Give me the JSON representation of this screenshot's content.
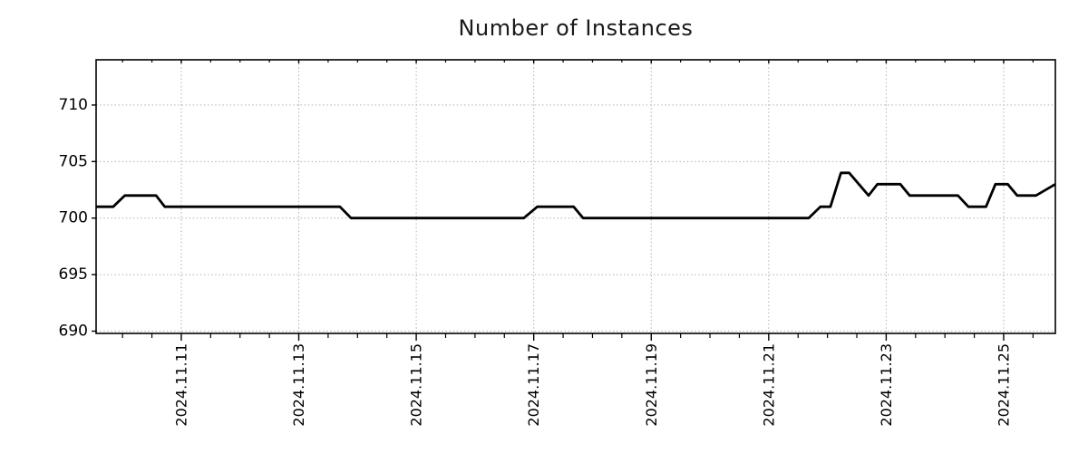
{
  "chart_data": {
    "type": "line",
    "title": "Number of Instances",
    "x_unit": "days since 2024-11-11 00:00",
    "xlim": [
      -1.45,
      14.88
    ],
    "ylim": [
      689.8,
      714.0
    ],
    "y_ticks": [
      690,
      695,
      700,
      705,
      710
    ],
    "x_major_ticks": [
      {
        "d": 0,
        "label": "2024.11.11"
      },
      {
        "d": 2,
        "label": "2024.11.13"
      },
      {
        "d": 4,
        "label": "2024.11.15"
      },
      {
        "d": 6,
        "label": "2024.11.17"
      },
      {
        "d": 8,
        "label": "2024.11.19"
      },
      {
        "d": 10,
        "label": "2024.11.21"
      },
      {
        "d": 12,
        "label": "2024.11.23"
      },
      {
        "d": 14,
        "label": "2024.11.25"
      }
    ],
    "x_minor_tick_step": 0.5,
    "grid": {
      "show": true,
      "style": "dotted",
      "color": "#b0b0b0"
    },
    "legend": {
      "show": false
    },
    "series": [
      {
        "name": "instances",
        "color": "#000000",
        "points": [
          [
            -1.45,
            701
          ],
          [
            -1.16,
            701
          ],
          [
            -0.96,
            702
          ],
          [
            -0.43,
            702
          ],
          [
            -0.28,
            701
          ],
          [
            2.7,
            701
          ],
          [
            2.89,
            700
          ],
          [
            5.83,
            700
          ],
          [
            6.06,
            701
          ],
          [
            6.68,
            701
          ],
          [
            6.84,
            700
          ],
          [
            10.68,
            700
          ],
          [
            10.88,
            701
          ],
          [
            11.05,
            701
          ],
          [
            11.23,
            704
          ],
          [
            11.37,
            704
          ],
          [
            11.7,
            702
          ],
          [
            11.85,
            703
          ],
          [
            12.24,
            703
          ],
          [
            12.4,
            702
          ],
          [
            13.22,
            702
          ],
          [
            13.4,
            701
          ],
          [
            13.7,
            701
          ],
          [
            13.86,
            703
          ],
          [
            14.07,
            703
          ],
          [
            14.23,
            702
          ],
          [
            14.55,
            702
          ],
          [
            14.88,
            703
          ]
        ]
      }
    ]
  }
}
